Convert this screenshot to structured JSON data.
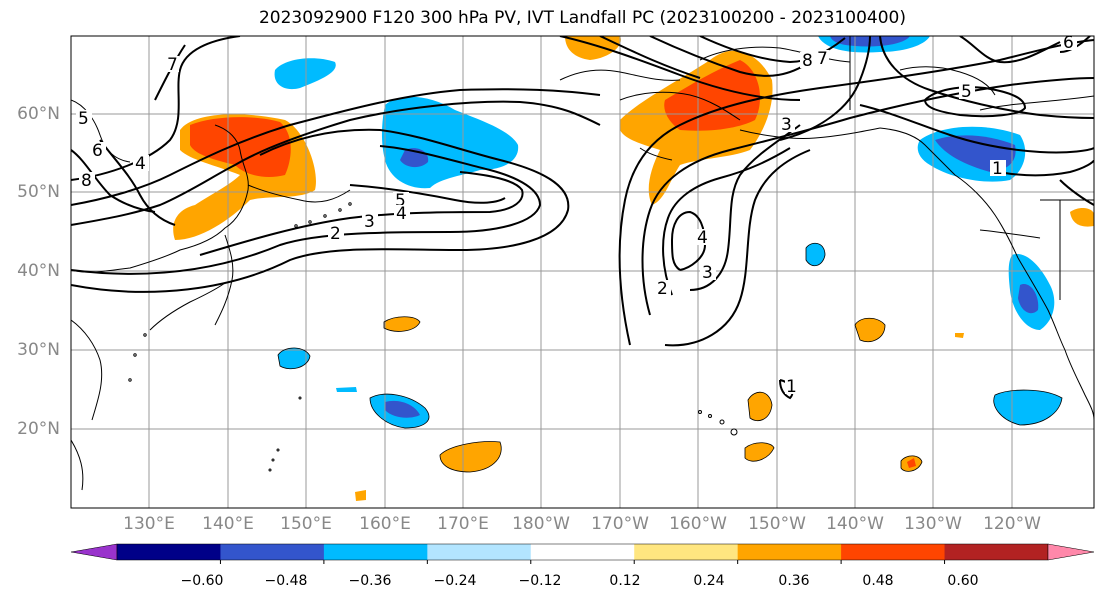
{
  "title": "2023092900 F120 300 hPa PV, IVT Landfall PC (2023100200 - 2023100400)",
  "lat_labels": [
    "60°N",
    "50°N",
    "40°N",
    "30°N",
    "20°N"
  ],
  "lon_labels": [
    "130°E",
    "140°E",
    "150°E",
    "160°E",
    "170°E",
    "180°W",
    "170°W",
    "160°W",
    "150°W",
    "140°W",
    "130°W",
    "120°W"
  ],
  "colorbar": {
    "colors": [
      "#9933cc",
      "#000088",
      "#3355cc",
      "#00bbff",
      "#b3e5ff",
      "#ffffff",
      "#ffe680",
      "#ffa500",
      "#ff4500",
      "#b22222",
      "#ff88aa"
    ],
    "tick_labels": [
      "−0.60",
      "−0.48",
      "−0.36",
      "−0.24",
      "−0.12",
      "0.12",
      "0.24",
      "0.36",
      "0.48",
      "0.60"
    ]
  },
  "contour_labels": [
    "5",
    "4",
    "3",
    "2",
    "4",
    "3",
    "2",
    "5",
    "3",
    "1",
    "8",
    "7",
    "4",
    "5",
    "6",
    "8",
    "1",
    "7",
    "6"
  ],
  "colors": {
    "grid": "#999999",
    "contour": "#000000",
    "coast": "#000000"
  }
}
